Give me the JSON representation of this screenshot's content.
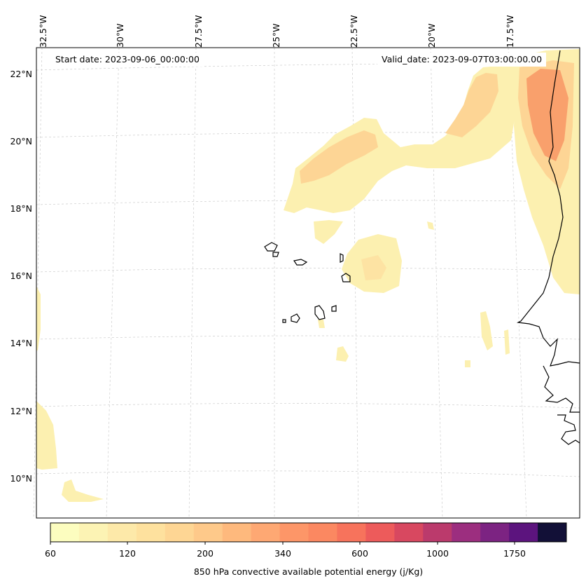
{
  "map": {
    "longitude_labels": [
      "32.5°W",
      "30°W",
      "27.5°W",
      "25°W",
      "22.5°W",
      "20°W",
      "17.5°W"
    ],
    "latitude_labels": [
      "22°N",
      "20°N",
      "18°N",
      "16°N",
      "14°N",
      "12°N",
      "10°N"
    ],
    "start_date": "Start date: 2023-09-06_00:00:00",
    "valid_date": "Valid_date: 2023-09-07T03:00:00.00",
    "colors": {
      "coastline": "#000000",
      "gridline": "#cccccc",
      "field_light": "#fcf0b0",
      "field_mid": "#fdd595",
      "field_strong": "#f9a06c"
    }
  },
  "colorbar": {
    "title": "850 hPa convective available potential energy (j/Kg)",
    "tick_labels": [
      "60",
      "120",
      "200",
      "340",
      "600",
      "1000",
      "1750"
    ],
    "colors": [
      "#fcfdbf",
      "#fcf3b4",
      "#fde9a9",
      "#fee19e",
      "#fed694",
      "#fec98a",
      "#feb97d",
      "#fea873",
      "#fd9668",
      "#fb8861",
      "#f7735c",
      "#ed5b5b",
      "#d84860",
      "#bb3a6c",
      "#9c2e7f",
      "#7c2382",
      "#5c147e",
      "#121037"
    ]
  }
}
